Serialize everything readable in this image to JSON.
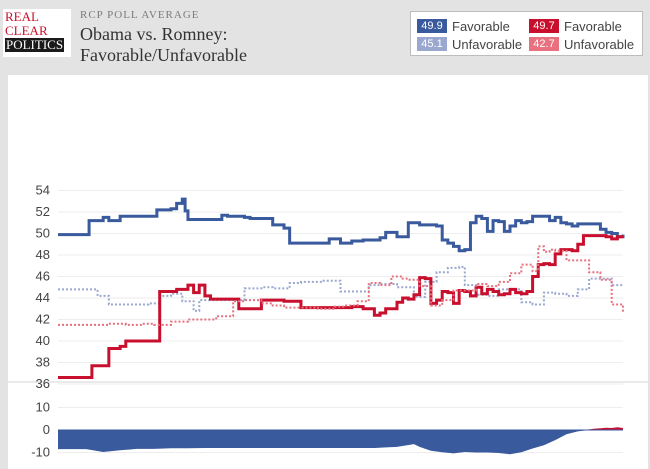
{
  "header": {
    "logo_lines": [
      "REAL",
      "CLEAR",
      "POLITICS"
    ],
    "kicker": "RCP POLL AVERAGE",
    "title_line1": "Obama vs. Romney:",
    "title_line2": "Favorable/Unfavorable"
  },
  "legend": {
    "items": [
      {
        "value": "49.9",
        "label": "Favorable",
        "color": "#3a5a9e"
      },
      {
        "value": "45.1",
        "label": "Unfavorable",
        "color": "#9aa8d0"
      },
      {
        "value": "49.7",
        "label": "Favorable",
        "color": "#c8102e"
      },
      {
        "value": "42.7",
        "label": "Unfavorable",
        "color": "#e8707f"
      }
    ]
  },
  "chart_data": [
    {
      "type": "line",
      "ylim": [
        35,
        55
      ],
      "xlim": [
        0,
        100
      ],
      "yticks": [
        36,
        38,
        40,
        42,
        44,
        46,
        48,
        50,
        52,
        54
      ],
      "grid": true,
      "series": [
        {
          "name": "Obama Favorable",
          "color": "#3a5a9e",
          "style": "solid",
          "x": [
            0,
            5,
            5.5,
            8,
            9,
            11,
            13,
            17,
            17.5,
            20,
            21,
            22,
            22.5,
            23,
            25,
            28,
            29,
            30,
            33,
            34,
            37,
            38,
            40,
            41,
            43,
            44,
            47,
            48,
            50,
            52,
            54,
            55,
            57,
            58,
            60,
            62,
            64,
            67,
            68,
            69,
            70,
            71,
            72,
            73,
            74,
            75,
            76,
            77,
            78,
            79,
            80,
            81,
            82,
            83,
            84,
            85,
            86,
            87,
            88,
            89,
            90,
            91,
            92,
            93,
            94,
            95,
            96,
            97,
            98,
            99,
            100
          ],
          "y": [
            49.9,
            49.9,
            51.2,
            51.5,
            51.2,
            51.6,
            51.6,
            51.6,
            52.2,
            52.3,
            52.8,
            53.2,
            52.1,
            51.3,
            51.3,
            51.3,
            51.7,
            51.6,
            51.5,
            51.4,
            51.4,
            50.8,
            50.5,
            49.1,
            49.1,
            49.1,
            49.1,
            49.5,
            49.1,
            49.3,
            49.4,
            49.4,
            49.6,
            50.1,
            49.7,
            51.0,
            50.8,
            50.7,
            49.4,
            49.1,
            48.8,
            48.4,
            48.5,
            51.0,
            51.6,
            51.4,
            50.2,
            51.2,
            51.1,
            50.2,
            50.7,
            51.2,
            51.0,
            51.1,
            51.6,
            51.6,
            51.6,
            51.2,
            51.5,
            51.0,
            50.9,
            50.7,
            50.9,
            50.9,
            50.9,
            50.9,
            50.4,
            50.1,
            50.0,
            49.7,
            49.9
          ]
        },
        {
          "name": "Obama Unfavorable",
          "color": "#9aa8d0",
          "style": "dotted",
          "x": [
            0,
            5,
            7,
            9,
            11,
            13,
            16,
            18,
            20,
            22,
            24,
            25,
            27,
            30,
            33,
            36,
            38,
            41,
            43,
            47,
            50,
            53,
            55,
            57,
            60,
            63,
            65,
            67,
            69,
            71,
            72,
            74,
            76,
            78,
            80,
            82,
            84,
            86,
            88,
            90,
            92,
            94,
            96,
            98,
            100
          ],
          "y": [
            44.8,
            44.8,
            44.2,
            43.4,
            43.4,
            43.4,
            43.5,
            44.2,
            44.4,
            43.7,
            42.8,
            43.8,
            43.8,
            43.8,
            44.9,
            45.0,
            44.9,
            45.4,
            45.5,
            45.6,
            44.6,
            44.6,
            45.2,
            45.3,
            45.0,
            44.1,
            45.5,
            46.4,
            46.8,
            46.9,
            45.2,
            44.3,
            44.2,
            44.8,
            44.8,
            43.6,
            43.4,
            44.5,
            44.4,
            44.2,
            44.8,
            45.8,
            45.8,
            45.2,
            45.1
          ]
        },
        {
          "name": "Romney Favorable",
          "color": "#c8102e",
          "style": "solid",
          "x": [
            0,
            5,
            6,
            8,
            9,
            11,
            12,
            14,
            15,
            17,
            18,
            20,
            21,
            23,
            24,
            25,
            26,
            27,
            29,
            31,
            32,
            35,
            36,
            39,
            40,
            43,
            46,
            48,
            50,
            52,
            54,
            56,
            57,
            58,
            59,
            60,
            61,
            62,
            63,
            64,
            65,
            66,
            67,
            68,
            69,
            70,
            71,
            72,
            73,
            74,
            75,
            76,
            77,
            78,
            79,
            80,
            81,
            82,
            83,
            84,
            85,
            86,
            87,
            88,
            89,
            90,
            91,
            92,
            93,
            94,
            95,
            96,
            97,
            98,
            99,
            100
          ],
          "y": [
            36.6,
            36.6,
            37.7,
            37.7,
            39.3,
            39.5,
            40.0,
            40.0,
            40.0,
            40.0,
            44.6,
            44.6,
            44.8,
            45.2,
            44.5,
            45.2,
            44.2,
            43.9,
            43.9,
            43.9,
            43.0,
            43.0,
            43.8,
            43.8,
            43.7,
            43.1,
            43.1,
            43.1,
            43.1,
            43.2,
            43.0,
            42.4,
            42.6,
            43.0,
            43.0,
            43.6,
            44.0,
            43.9,
            44.3,
            45.9,
            45.8,
            43.5,
            43.8,
            44.6,
            44.5,
            43.5,
            44.7,
            44.6,
            44.2,
            45.0,
            44.4,
            44.8,
            44.6,
            44.3,
            44.4,
            44.8,
            44.5,
            44.4,
            44.6,
            46.0,
            47.1,
            47.2,
            47.1,
            48.1,
            48.5,
            48.5,
            48.4,
            49.0,
            49.8,
            49.8,
            49.8,
            49.8,
            49.7,
            49.5,
            49.7,
            49.7
          ]
        },
        {
          "name": "Romney Unfavorable",
          "color": "#e8707f",
          "style": "dotted",
          "x": [
            0,
            5,
            9,
            12,
            15,
            17,
            20,
            23,
            25,
            28,
            31,
            33,
            36,
            38,
            40,
            43,
            46,
            49,
            51,
            53,
            55,
            57,
            59,
            61,
            62,
            64,
            66,
            68,
            70,
            72,
            74,
            76,
            78,
            79,
            80,
            82,
            84,
            85,
            86,
            87,
            88,
            90,
            92,
            94,
            96,
            98,
            100
          ],
          "y": [
            41.5,
            41.5,
            41.6,
            41.5,
            41.6,
            41.5,
            41.8,
            42.0,
            42.0,
            42.3,
            43.7,
            43.8,
            43.5,
            43.3,
            43.1,
            43.1,
            43.0,
            43.2,
            43.3,
            43.7,
            45.4,
            45.2,
            46.0,
            45.8,
            45.7,
            45.1,
            43.3,
            43.8,
            44.7,
            44.7,
            45.3,
            45.1,
            45.5,
            45.5,
            46.3,
            47.1,
            46.5,
            48.8,
            48.3,
            48.5,
            48.4,
            47.5,
            47.5,
            46.4,
            45.7,
            43.4,
            42.7
          ]
        }
      ]
    },
    {
      "type": "area",
      "ylim": [
        -13,
        15
      ],
      "yticks": [
        10,
        0,
        -10
      ],
      "series": [
        {
          "name": "spread",
          "color": "#3a5a9e",
          "positive_color": "#c8102e",
          "x": [
            0,
            5,
            8,
            11,
            14,
            17,
            20,
            23,
            26,
            30,
            33,
            36,
            40,
            43,
            46,
            50,
            53,
            56,
            60,
            63,
            64,
            66,
            68,
            70,
            72,
            74,
            76,
            78,
            80,
            82,
            84,
            86,
            88,
            90,
            92,
            94,
            95,
            96,
            97,
            98,
            99,
            100
          ],
          "y": [
            -8.5,
            -8.5,
            -9.8,
            -9.0,
            -8.4,
            -8.4,
            -8.1,
            -8.1,
            -8.0,
            -8.0,
            -8.0,
            -8.0,
            -8.0,
            -8.0,
            -8.0,
            -8.0,
            -8.0,
            -8.0,
            -7.5,
            -6.3,
            -7.5,
            -9.2,
            -9.9,
            -10.4,
            -9.8,
            -10.0,
            -10.0,
            -10.2,
            -10.8,
            -9.9,
            -8.2,
            -6.8,
            -4.5,
            -1.9,
            -0.6,
            0.3,
            0.6,
            0.8,
            1.0,
            0.9,
            1.2,
            0.9
          ]
        }
      ]
    }
  ]
}
